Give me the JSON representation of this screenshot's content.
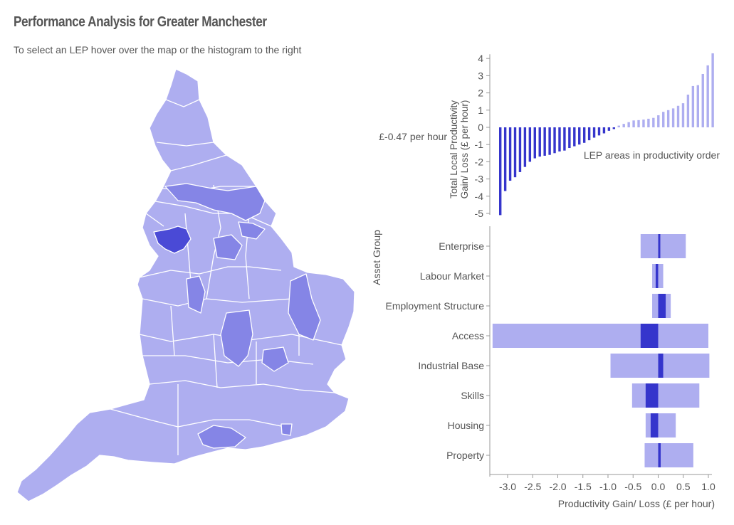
{
  "header": {
    "title": "Performance Analysis for Greater Manchester",
    "subtitle": "To select an LEP hover over the map or the histogram to the right"
  },
  "colors": {
    "light": "#aeaef0",
    "medium": "#8585e6",
    "selected": "#4a4ad6",
    "dark": "#3535cc"
  },
  "chart_data": [
    {
      "type": "bar",
      "ylabel": "Total Local Productivity Gain/ Loss (£ per hour)",
      "xlabel": "LEP areas in productivity order",
      "annotation": "£-0.47 per hour",
      "ylim": [
        -5,
        4
      ],
      "yticks": [
        4,
        3,
        2,
        1,
        0,
        -1,
        -2,
        -3,
        -4,
        -5
      ],
      "ytick_labels": [
        "4",
        "3",
        "2",
        "1",
        "0",
        "-1",
        "-2",
        "-3",
        "-4",
        "-5"
      ],
      "values": [
        -5.1,
        -3.7,
        -3.1,
        -2.9,
        -2.6,
        -2.3,
        -2.0,
        -1.8,
        -1.7,
        -1.65,
        -1.6,
        -1.5,
        -1.4,
        -1.35,
        -1.2,
        -1.1,
        -1.0,
        -0.9,
        -0.75,
        -0.6,
        -0.47,
        -0.35,
        -0.2,
        -0.1,
        0.1,
        0.2,
        0.3,
        0.4,
        0.42,
        0.45,
        0.5,
        0.55,
        0.7,
        0.9,
        1.0,
        1.1,
        1.25,
        1.4,
        1.9,
        2.4,
        2.45,
        3.1,
        3.6,
        4.3
      ],
      "highlight_negative_color": "dark",
      "highlight_positive_color": "light"
    },
    {
      "type": "bar",
      "orientation": "horizontal",
      "ylabel": "Asset Group",
      "xlabel": "Productivity Gain/ Loss (£ per hour)",
      "xlim": [
        -3.3,
        1.1
      ],
      "xticks": [
        -3.0,
        -2.5,
        -2.0,
        -1.5,
        -1.0,
        -0.5,
        0.0,
        0.5,
        1.0
      ],
      "xtick_labels": [
        "-3.0",
        "-2.5",
        "-2.0",
        "-1.5",
        "-1.0",
        "-0.5",
        "0.0",
        "0.5",
        "1.0"
      ],
      "categories": [
        "Enterprise",
        "Labour Market",
        "Employment Structure",
        "Access",
        "Industrial Base",
        "Skills",
        "Housing",
        "Property"
      ],
      "series": [
        {
          "role": "range",
          "values": [
            [
              -0.35,
              0.55
            ],
            [
              -0.12,
              0.1
            ],
            [
              -0.12,
              0.25
            ],
            [
              -3.3,
              1.0
            ],
            [
              -0.95,
              1.02
            ],
            [
              -0.52,
              0.82
            ],
            [
              -0.25,
              0.35
            ],
            [
              -0.27,
              0.7
            ]
          ]
        },
        {
          "role": "value",
          "values": [
            0.0,
            -0.05,
            0.15,
            -0.35,
            0.1,
            -0.25,
            -0.15,
            0.05
          ]
        }
      ]
    }
  ]
}
